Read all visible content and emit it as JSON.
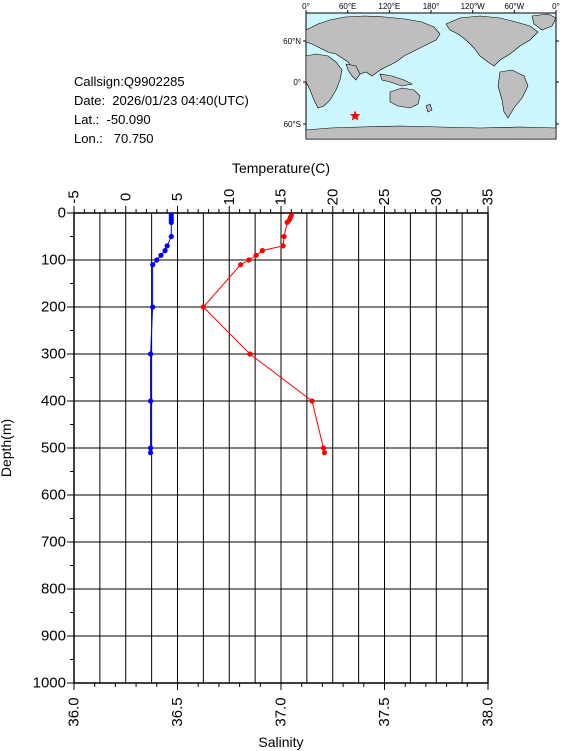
{
  "info": {
    "callsign": "Callsign:Q9902285",
    "date": "Date:  2026/01/23 04:40(UTC)",
    "lat": "Lat.:  -50.090",
    "lon": "Lon.:   70.750"
  },
  "map": {
    "lon_labels": [
      "0°",
      "60°E",
      "120°E",
      "180°",
      "120°W",
      "60°W",
      "0°"
    ],
    "lat_labels": [
      "60°N",
      "0°",
      "60°S"
    ],
    "station": {
      "lat": -50.09,
      "lon": 70.75
    },
    "colors": {
      "ocean": "#ccf7ff",
      "land": "#bebebe",
      "marker": "#ff0000"
    }
  },
  "chart_data": {
    "type": "line",
    "title": "",
    "ylabel": "Depth(m)",
    "ylim": [
      0,
      1000
    ],
    "y_inverted": true,
    "y_ticks": [
      "0",
      "100",
      "200",
      "300",
      "400",
      "500",
      "600",
      "700",
      "800",
      "900",
      "1000"
    ],
    "temperature_axis": {
      "label": "Temperature(C)",
      "range": [
        -5,
        35
      ],
      "ticks": [
        "-5",
        "0",
        "5",
        "10",
        "15",
        "20",
        "25",
        "30",
        "35"
      ]
    },
    "salinity_axis": {
      "label": "Salinity",
      "range": [
        36.0,
        38.0
      ],
      "ticks": [
        "36.0",
        "36.5",
        "37.0",
        "37.5",
        "38.0"
      ]
    },
    "series": [
      {
        "key": "temperature",
        "color": "#ff0000",
        "depth": [
          5,
          10,
          15,
          20,
          50,
          70,
          80,
          90,
          100,
          110,
          200,
          300,
          400,
          500,
          510
        ],
        "values": [
          16.0,
          15.9,
          15.8,
          15.6,
          15.3,
          15.2,
          13.2,
          12.6,
          11.9,
          11.1,
          7.5,
          12.0,
          18.0,
          19.1,
          19.2
        ]
      },
      {
        "key": "salinity",
        "color": "#0000ff",
        "depth": [
          5,
          10,
          15,
          20,
          50,
          70,
          80,
          90,
          100,
          110,
          200,
          300,
          400,
          500,
          510
        ],
        "values": [
          36.47,
          36.47,
          36.47,
          36.47,
          36.47,
          36.45,
          36.44,
          36.42,
          36.4,
          36.38,
          36.38,
          36.37,
          36.37,
          36.37,
          36.37
        ]
      }
    ]
  }
}
